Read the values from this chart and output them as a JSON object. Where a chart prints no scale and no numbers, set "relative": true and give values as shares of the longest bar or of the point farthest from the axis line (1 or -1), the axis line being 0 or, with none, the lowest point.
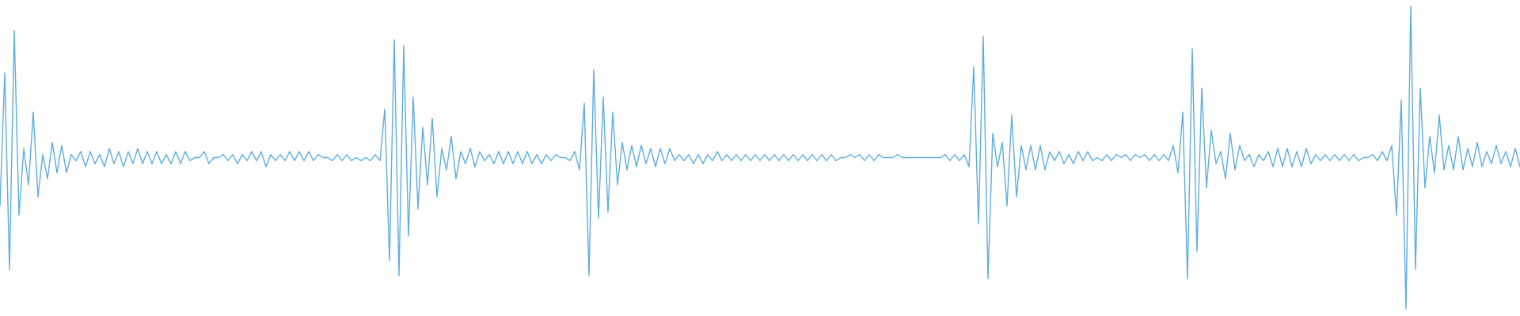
{
  "chart_data": {
    "type": "line",
    "relative": true,
    "categories": [
      null,
      null,
      null,
      null,
      null,
      null,
      null,
      null,
      null,
      null,
      null,
      null,
      null,
      null,
      null,
      null,
      null,
      null,
      null,
      null,
      null,
      null,
      null,
      null,
      null,
      null,
      null,
      null,
      null,
      null,
      null,
      null,
      null,
      null,
      null,
      null,
      null,
      null,
      null,
      null,
      null,
      null,
      null,
      null,
      null,
      null,
      null,
      null,
      null,
      null,
      null,
      null,
      null,
      null,
      null,
      null,
      null,
      null,
      null,
      null,
      null,
      null,
      null,
      null,
      null,
      null,
      null,
      null,
      null,
      null,
      null,
      null,
      null,
      null,
      null,
      null,
      null,
      null,
      null,
      null,
      null,
      null,
      null,
      null,
      null,
      null,
      null,
      null,
      null,
      null,
      null,
      null,
      null,
      null,
      null,
      null,
      null,
      null,
      null,
      null,
      null,
      null,
      null,
      null,
      null,
      null,
      null,
      null,
      null,
      null,
      null,
      null,
      null,
      null,
      null,
      null,
      null,
      null,
      null,
      null,
      null,
      null,
      null,
      null,
      null,
      null,
      null,
      null,
      null,
      null,
      null,
      null,
      null,
      null,
      null,
      null,
      null,
      null,
      null,
      null,
      null,
      null,
      null,
      null,
      null,
      null,
      null,
      null,
      null,
      null,
      null,
      null,
      null,
      null,
      null,
      null,
      null,
      null,
      null,
      null,
      null,
      null,
      null,
      null,
      null,
      null,
      null,
      null,
      null,
      null,
      null,
      null,
      null,
      null,
      null,
      null,
      null,
      null,
      null,
      null,
      null,
      null,
      null,
      null,
      null,
      null,
      null,
      null,
      null,
      null,
      null,
      null,
      null,
      null,
      null,
      null,
      null,
      null,
      null,
      null,
      null,
      null,
      null,
      null,
      null,
      null,
      null,
      null,
      null,
      null,
      null,
      null,
      null,
      null,
      null,
      null,
      null,
      null,
      null,
      null,
      null,
      null,
      null,
      null,
      null,
      null,
      null,
      null,
      null,
      null,
      null,
      null,
      null,
      null,
      null,
      null,
      null,
      null,
      null,
      null,
      null,
      null,
      null,
      null,
      null,
      null,
      null,
      null,
      null,
      null,
      null,
      null,
      null,
      null,
      null,
      null,
      null,
      null,
      null,
      null,
      null,
      null,
      null,
      null,
      null,
      null,
      null,
      null,
      null,
      null,
      null,
      null,
      null,
      null,
      null,
      null,
      null,
      null,
      null,
      null,
      null,
      null,
      null,
      null,
      null,
      null,
      null,
      null,
      null,
      null,
      null,
      null,
      null,
      null,
      null,
      null,
      null,
      null,
      null,
      null,
      null,
      null,
      null,
      null,
      null,
      null,
      null,
      null,
      null,
      null,
      null,
      null,
      null,
      null,
      null,
      null,
      null,
      null,
      null,
      null,
      null
    ],
    "series": [
      {
        "color": "#5dade2",
        "values": [
          0.34,
          0.78,
          0.13,
          0.92,
          0.31,
          0.53,
          0.41,
          0.65,
          0.37,
          0.51,
          0.43,
          0.55,
          0.45,
          0.54,
          0.45,
          0.51,
          0.49,
          0.52,
          0.47,
          0.52,
          0.48,
          0.51,
          0.47,
          0.53,
          0.48,
          0.52,
          0.47,
          0.52,
          0.48,
          0.53,
          0.48,
          0.52,
          0.48,
          0.52,
          0.48,
          0.51,
          0.48,
          0.52,
          0.48,
          0.52,
          0.49,
          0.5,
          0.5,
          0.52,
          0.48,
          0.5,
          0.5,
          0.51,
          0.49,
          0.51,
          0.48,
          0.51,
          0.49,
          0.52,
          0.49,
          0.52,
          0.47,
          0.51,
          0.49,
          0.51,
          0.49,
          0.52,
          0.49,
          0.52,
          0.49,
          0.52,
          0.49,
          0.51,
          0.5,
          0.5,
          0.49,
          0.51,
          0.49,
          0.51,
          0.49,
          0.5,
          0.49,
          0.5,
          0.49,
          0.51,
          0.49,
          0.66,
          0.16,
          0.89,
          0.11,
          0.87,
          0.24,
          0.7,
          0.33,
          0.6,
          0.41,
          0.63,
          0.37,
          0.53,
          0.46,
          0.57,
          0.43,
          0.52,
          0.48,
          0.53,
          0.47,
          0.52,
          0.49,
          0.51,
          0.48,
          0.52,
          0.48,
          0.52,
          0.48,
          0.52,
          0.48,
          0.52,
          0.48,
          0.51,
          0.48,
          0.51,
          0.49,
          0.51,
          0.5,
          0.5,
          0.49,
          0.52,
          0.46,
          0.68,
          0.11,
          0.79,
          0.3,
          0.7,
          0.32,
          0.65,
          0.41,
          0.55,
          0.46,
          0.54,
          0.47,
          0.54,
          0.48,
          0.53,
          0.47,
          0.53,
          0.48,
          0.53,
          0.49,
          0.51,
          0.49,
          0.51,
          0.48,
          0.51,
          0.48,
          0.51,
          0.49,
          0.52,
          0.49,
          0.51,
          0.49,
          0.51,
          0.49,
          0.51,
          0.49,
          0.51,
          0.49,
          0.51,
          0.49,
          0.51,
          0.49,
          0.51,
          0.49,
          0.51,
          0.49,
          0.51,
          0.49,
          0.51,
          0.49,
          0.51,
          0.49,
          0.51,
          0.49,
          0.5,
          0.5,
          0.51,
          0.5,
          0.51,
          0.49,
          0.51,
          0.49,
          0.51,
          0.5,
          0.5,
          0.5,
          0.51,
          0.5,
          0.5,
          0.5,
          0.5,
          0.5,
          0.5,
          0.5,
          0.5,
          0.5,
          0.51,
          0.49,
          0.51,
          0.49,
          0.51,
          0.47,
          0.8,
          0.28,
          0.9,
          0.1,
          0.58,
          0.47,
          0.55,
          0.34,
          0.64,
          0.37,
          0.54,
          0.46,
          0.54,
          0.46,
          0.54,
          0.46,
          0.52,
          0.49,
          0.52,
          0.48,
          0.51,
          0.48,
          0.52,
          0.49,
          0.52,
          0.49,
          0.5,
          0.49,
          0.51,
          0.49,
          0.51,
          0.5,
          0.51,
          0.49,
          0.51,
          0.5,
          0.51,
          0.49,
          0.51,
          0.49,
          0.51,
          0.49,
          0.54,
          0.45,
          0.65,
          0.1,
          0.86,
          0.19,
          0.73,
          0.4,
          0.59,
          0.48,
          0.52,
          0.43,
          0.58,
          0.46,
          0.54,
          0.49,
          0.51,
          0.47,
          0.51,
          0.49,
          0.52,
          0.47,
          0.53,
          0.47,
          0.53,
          0.47,
          0.52,
          0.47,
          0.53,
          0.48,
          0.51,
          0.49,
          0.51,
          0.49,
          0.51,
          0.49,
          0.51,
          0.49,
          0.51,
          0.49,
          0.5,
          0.5,
          0.51,
          0.49,
          0.52,
          0.49,
          0.54,
          0.31,
          0.69,
          0,
          1,
          0.13,
          0.73,
          0.4,
          0.57,
          0.45,
          0.64,
          0.46,
          0.54,
          0.46,
          0.57,
          0.46,
          0.53,
          0.47,
          0.55,
          0.47,
          0.52,
          0.48,
          0.54,
          0.48,
          0.52,
          0.47,
          0.53,
          0.47
        ]
      }
    ]
  }
}
